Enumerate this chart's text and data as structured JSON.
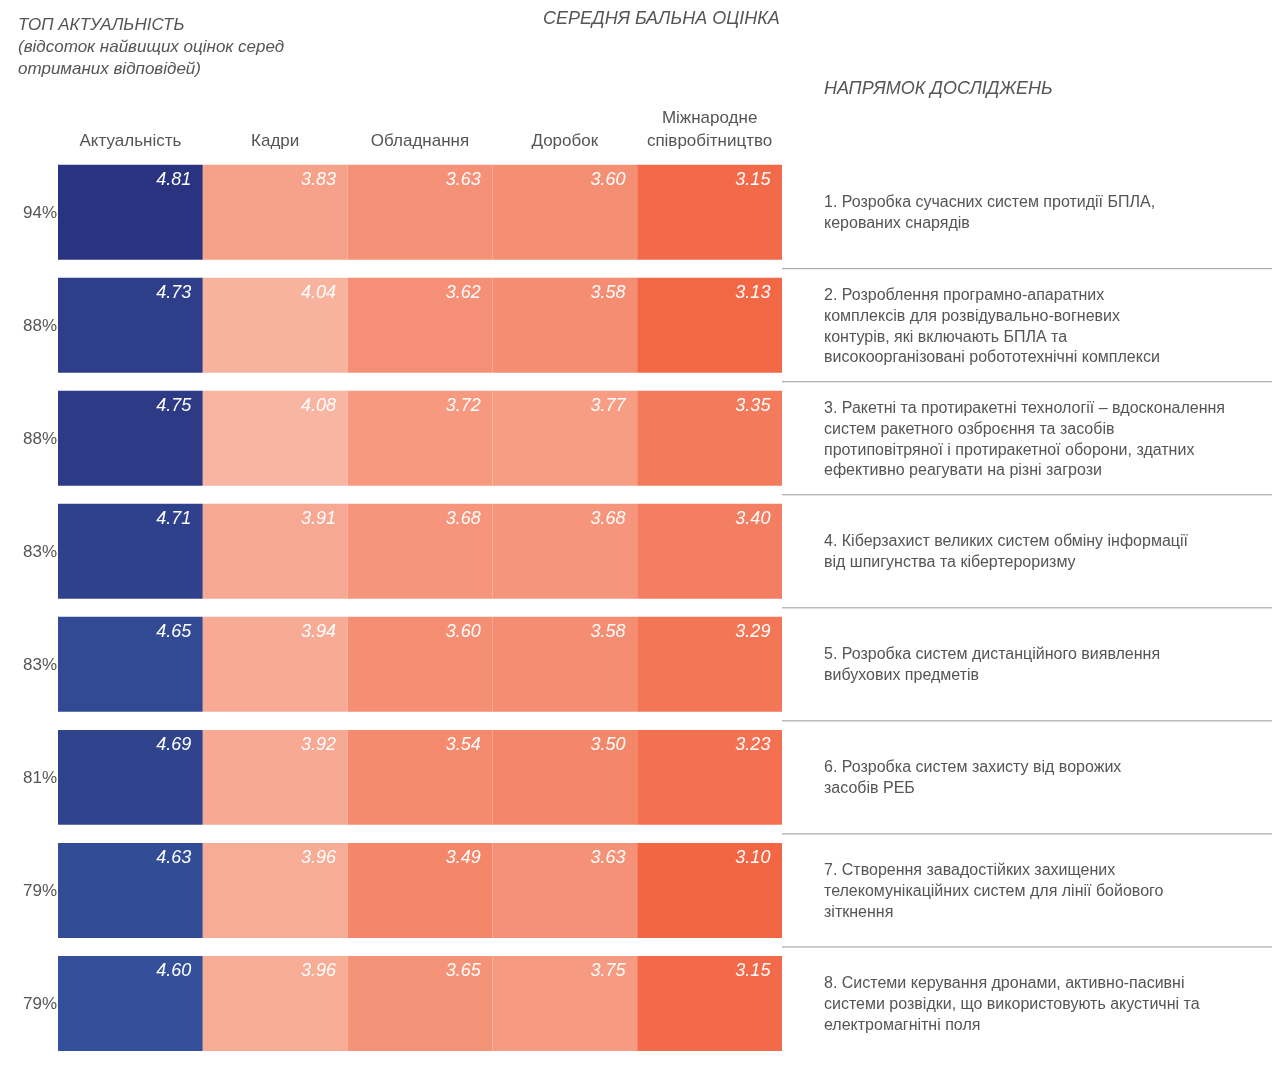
{
  "chart_data": {
    "type": "heatmap",
    "title": "СЕРЕДНЯ БАЛЬНА ОЦІНКА",
    "ylabel": "ТОП АКТУАЛЬНІСТЬ\n(відсоток найвищих оцінок серед\nотриманих відповідей)",
    "y2label": "НАПРЯМОК ДОСЛІДЖЕНЬ",
    "categories": [
      "Актуальність",
      "Кадри",
      "Обладнання",
      "Доробок",
      "Міжнародне\nспівробітництво"
    ],
    "y_categories": [
      "94%",
      "88%",
      "88%",
      "83%",
      "83%",
      "81%",
      "79%",
      "79%"
    ],
    "y2_categories": [
      "1. Розробка сучасних систем протидії БПЛА,\nкерованих снарядів",
      "2. Розроблення програмно-апаратних\nкомплексів для розвідувально-вогневих\nконтурів, які включають БПЛА та\nвисокоорганізовані робототехнічні комплекси",
      "3. Ракетні та протиракетні технології – вдосконалення\nсистем ракетного озброєння та засобів\nпротиповітряної і протиракетної оборони, здатних\nефективно реагувати на різні загрози",
      "4. Кіберзахист великих систем обміну інформації\nвід шпигунства та кібертероризму",
      "5. Розробка систем дистанційного виявлення\nвибухових предметів",
      "6. Розробка систем захисту від ворожих\nзасобів РЕБ",
      "7. Створення завадостійких захищених\nтелекомунікаційних систем для лінії бойового\nзіткнення",
      "8. Системи керування дронами, активно-пасивні\nсистеми розвідки, що використовують акустичні та\nелектромагнітні поля"
    ],
    "cells": [
      [
        4.81,
        3.83,
        3.63,
        3.6,
        3.15
      ],
      [
        4.73,
        4.04,
        3.62,
        3.58,
        3.13
      ],
      [
        4.75,
        4.08,
        3.72,
        3.77,
        3.35
      ],
      [
        4.71,
        3.91,
        3.68,
        3.68,
        3.4
      ],
      [
        4.65,
        3.94,
        3.6,
        3.58,
        3.29
      ],
      [
        4.69,
        3.92,
        3.54,
        3.5,
        3.23
      ],
      [
        4.63,
        3.96,
        3.49,
        3.63,
        3.1
      ],
      [
        4.6,
        3.96,
        3.65,
        3.75,
        3.15
      ]
    ],
    "cell_labels": [
      [
        "4.81",
        "3.83",
        "3.63",
        "3.60",
        "3.15"
      ],
      [
        "4.73",
        "4.04",
        "3.62",
        "3.58",
        "3.13"
      ],
      [
        "4.75",
        "4.08",
        "3.72",
        "3.77",
        "3.35"
      ],
      [
        "4.71",
        "3.91",
        "3.68",
        "3.68",
        "3.40"
      ],
      [
        "4.65",
        "3.94",
        "3.60",
        "3.58",
        "3.29"
      ],
      [
        "4.69",
        "3.92",
        "3.54",
        "3.50",
        "3.23"
      ],
      [
        "4.63",
        "3.96",
        "3.49",
        "3.63",
        "3.10"
      ],
      [
        "4.60",
        "3.96",
        "3.65",
        "3.75",
        "3.15"
      ]
    ]
  }
}
